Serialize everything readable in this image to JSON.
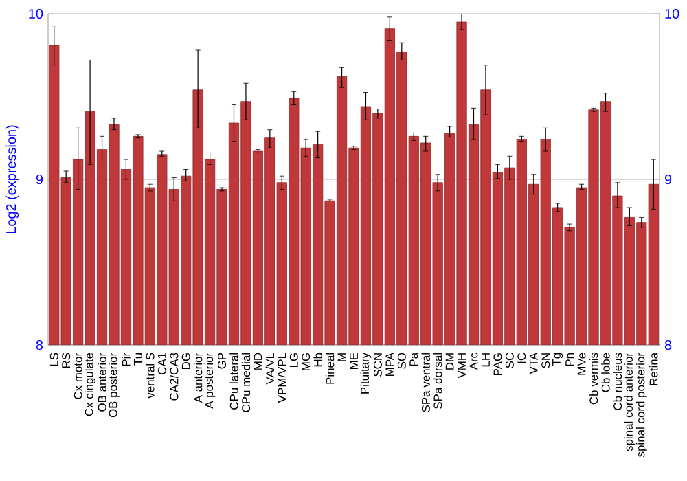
{
  "chart_data": {
    "type": "bar",
    "ylabel": "Log2 (expression)",
    "categories": [
      "LS",
      "RS",
      "Cx motor",
      "Cx cingulate",
      "OB anterior",
      "OB posterior",
      "Pir",
      "Tu",
      "ventral S",
      "CA1",
      "CA2/CA3",
      "DG",
      "A anterior",
      "A posterior",
      "GP",
      "CPu lateral",
      "CPu medial",
      "MD",
      "VA/VL",
      "VPM/VPL",
      "LG",
      "MG",
      "Hb",
      "Pineal",
      "M",
      "ME",
      "Pituitary",
      "SCN",
      "MPA",
      "SO",
      "Pa",
      "SPa ventral",
      "SPa dorsal",
      "DM",
      "VMH",
      "Arc",
      "LH",
      "PAG",
      "SC",
      "IC",
      "VTA",
      "SN",
      "Tg",
      "Pn",
      "MVe",
      "Cb vermis",
      "Cb lobe",
      "Cb nucleus",
      "spinal cord anterior",
      "spinal cord posterior",
      "Retina"
    ],
    "values": [
      9.81,
      9.01,
      9.12,
      9.41,
      9.18,
      9.33,
      9.06,
      9.26,
      8.95,
      9.15,
      8.94,
      9.02,
      9.54,
      9.12,
      8.94,
      9.34,
      9.47,
      9.17,
      9.25,
      8.98,
      9.49,
      9.19,
      9.21,
      8.87,
      9.62,
      9.19,
      9.44,
      9.4,
      9.91,
      9.77,
      9.26,
      9.22,
      8.98,
      9.28,
      9.95,
      9.33,
      9.54,
      9.04,
      9.07,
      9.24,
      8.97,
      9.24,
      8.83,
      8.71,
      8.95,
      9.42,
      9.47,
      8.9,
      8.77,
      8.74,
      8.97
    ],
    "errors": [
      [
        9.69,
        9.92
      ],
      [
        8.98,
        9.05
      ],
      [
        8.94,
        9.31
      ],
      [
        9.09,
        9.72
      ],
      [
        9.11,
        9.26
      ],
      [
        9.3,
        9.37
      ],
      [
        9.0,
        9.12
      ],
      [
        9.25,
        9.27
      ],
      [
        8.93,
        8.97
      ],
      [
        9.14,
        9.17
      ],
      [
        8.87,
        9.01
      ],
      [
        8.99,
        9.06
      ],
      [
        9.31,
        9.78
      ],
      [
        9.09,
        9.16
      ],
      [
        8.93,
        8.95
      ],
      [
        9.23,
        9.45
      ],
      [
        9.36,
        9.58
      ],
      [
        9.16,
        9.18
      ],
      [
        9.19,
        9.3
      ],
      [
        8.94,
        9.02
      ],
      [
        9.45,
        9.53
      ],
      [
        9.14,
        9.24
      ],
      [
        9.13,
        9.29
      ],
      [
        8.87,
        8.88
      ],
      [
        9.555,
        9.675
      ],
      [
        9.18,
        9.2
      ],
      [
        9.36,
        9.525
      ],
      [
        9.37,
        9.425
      ],
      [
        9.84,
        9.98
      ],
      [
        9.72,
        9.825
      ],
      [
        9.235,
        9.28
      ],
      [
        9.17,
        9.26
      ],
      [
        8.93,
        9.03
      ],
      [
        9.255,
        9.32
      ],
      [
        9.905,
        10.0
      ],
      [
        9.24,
        9.43
      ],
      [
        9.39,
        9.69
      ],
      [
        9.005,
        9.09
      ],
      [
        9.0,
        9.14
      ],
      [
        9.23,
        9.26
      ],
      [
        8.91,
        9.03
      ],
      [
        9.17,
        9.31
      ],
      [
        8.805,
        8.855
      ],
      [
        8.69,
        8.73
      ],
      [
        8.94,
        8.97
      ],
      [
        9.41,
        9.43
      ],
      [
        9.41,
        9.52
      ],
      [
        8.83,
        8.98
      ],
      [
        8.72,
        8.83
      ],
      [
        8.71,
        8.77
      ],
      [
        8.82,
        9.12
      ]
    ],
    "color": "#c0383a",
    "ylim": [
      8,
      10
    ],
    "yticks": [
      8,
      9,
      10
    ],
    "y2lim": [
      8,
      10
    ],
    "y2ticks": [
      8,
      9,
      10
    ],
    "grid": "y"
  }
}
